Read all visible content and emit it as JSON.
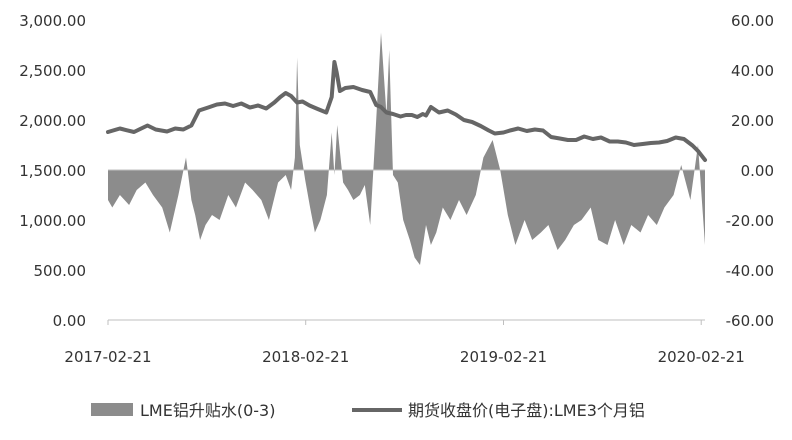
{
  "chart_data": {
    "type": "area",
    "title": "",
    "left_axis": {
      "ylim": [
        0,
        3000
      ],
      "ticks": [
        0,
        500,
        1000,
        1500,
        2000,
        2500,
        3000
      ],
      "tick_labels": [
        "0.00",
        "500.00",
        "1,000.00",
        "1,500.00",
        "2,000.00",
        "2,500.00",
        "3,000.00"
      ]
    },
    "right_axis": {
      "ylim": [
        -60,
        60
      ],
      "ticks": [
        -60,
        -40,
        -20,
        0,
        20,
        40,
        60
      ],
      "tick_labels": [
        "-60.00",
        "-40.00",
        "-20.00",
        "0.00",
        "20.00",
        "40.00",
        "60.00"
      ]
    },
    "x_axis": {
      "range": [
        "2017-02-21",
        "2020-02-28"
      ],
      "tick_labels": [
        "2017-02-21",
        "2018-02-21",
        "2019-02-21",
        "2020-02-21"
      ]
    },
    "grid": false,
    "legend_position": "bottom",
    "colors": {
      "premium_area": "#8c8c8c",
      "price_line": "#666666",
      "axis": "#bfbfbf"
    },
    "series": [
      {
        "name": "期货收盘价(电子盘):LME3个月铝",
        "axis": "left",
        "kind": "line",
        "x": [
          "2017-02-21",
          "2017-03-15",
          "2017-04-10",
          "2017-05-05",
          "2017-05-20",
          "2017-06-10",
          "2017-06-25",
          "2017-07-10",
          "2017-07-25",
          "2017-08-08",
          "2017-08-25",
          "2017-09-10",
          "2017-09-25",
          "2017-10-10",
          "2017-10-25",
          "2017-11-10",
          "2017-11-25",
          "2017-12-10",
          "2017-12-25",
          "2018-01-05",
          "2018-01-15",
          "2018-01-25",
          "2018-02-05",
          "2018-02-15",
          "2018-02-28",
          "2018-03-15",
          "2018-03-31",
          "2018-04-10",
          "2018-04-15",
          "2018-04-19",
          "2018-04-25",
          "2018-05-05",
          "2018-05-20",
          "2018-06-05",
          "2018-06-20",
          "2018-07-01",
          "2018-07-10",
          "2018-07-20",
          "2018-08-01",
          "2018-08-15",
          "2018-08-25",
          "2018-09-05",
          "2018-09-15",
          "2018-09-25",
          "2018-10-01",
          "2018-10-10",
          "2018-10-25",
          "2018-11-10",
          "2018-11-25",
          "2018-12-10",
          "2018-12-25",
          "2019-01-10",
          "2019-01-25",
          "2019-02-05",
          "2019-02-21",
          "2019-03-05",
          "2019-03-20",
          "2019-04-05",
          "2019-04-20",
          "2019-05-05",
          "2019-05-20",
          "2019-06-05",
          "2019-06-20",
          "2019-07-05",
          "2019-07-20",
          "2019-08-05",
          "2019-08-20",
          "2019-09-05",
          "2019-09-20",
          "2019-10-05",
          "2019-10-20",
          "2019-11-05",
          "2019-11-20",
          "2019-12-05",
          "2019-12-20",
          "2020-01-05",
          "2020-01-20",
          "2020-02-05",
          "2020-02-15",
          "2020-02-28"
        ],
        "values": [
          1880,
          1915,
          1880,
          1945,
          1905,
          1885,
          1915,
          1905,
          1945,
          2095,
          2125,
          2155,
          2165,
          2140,
          2165,
          2125,
          2145,
          2115,
          2175,
          2230,
          2270,
          2240,
          2175,
          2185,
          2145,
          2110,
          2075,
          2230,
          2580,
          2480,
          2290,
          2320,
          2330,
          2300,
          2280,
          2150,
          2130,
          2075,
          2060,
          2035,
          2050,
          2050,
          2030,
          2060,
          2045,
          2130,
          2075,
          2095,
          2055,
          2000,
          1980,
          1940,
          1895,
          1865,
          1875,
          1895,
          1915,
          1890,
          1905,
          1895,
          1830,
          1815,
          1800,
          1800,
          1835,
          1810,
          1825,
          1785,
          1785,
          1775,
          1750,
          1760,
          1770,
          1775,
          1790,
          1825,
          1810,
          1745,
          1690,
          1600
        ]
      },
      {
        "name": "LME铝升贴水(0-3)",
        "axis": "right",
        "kind": "area",
        "x": [
          "2017-02-21",
          "2017-03-01",
          "2017-03-15",
          "2017-04-01",
          "2017-04-15",
          "2017-05-01",
          "2017-05-15",
          "2017-06-01",
          "2017-06-15",
          "2017-07-01",
          "2017-07-15",
          "2017-07-25",
          "2017-08-01",
          "2017-08-10",
          "2017-08-20",
          "2017-09-01",
          "2017-09-15",
          "2017-10-01",
          "2017-10-15",
          "2017-11-01",
          "2017-11-15",
          "2017-12-01",
          "2017-12-15",
          "2018-01-01",
          "2018-01-15",
          "2018-01-25",
          "2018-02-01",
          "2018-02-05",
          "2018-02-10",
          "2018-02-20",
          "2018-03-01",
          "2018-03-10",
          "2018-03-20",
          "2018-04-01",
          "2018-04-10",
          "2018-04-15",
          "2018-04-20",
          "2018-05-01",
          "2018-05-10",
          "2018-05-20",
          "2018-06-01",
          "2018-06-10",
          "2018-06-20",
          "2018-07-01",
          "2018-07-10",
          "2018-07-20",
          "2018-07-25",
          "2018-08-01",
          "2018-08-10",
          "2018-08-20",
          "2018-09-01",
          "2018-09-10",
          "2018-09-20",
          "2018-10-01",
          "2018-10-10",
          "2018-10-20",
          "2018-11-01",
          "2018-11-15",
          "2018-12-01",
          "2018-12-15",
          "2019-01-01",
          "2019-01-15",
          "2019-02-01",
          "2019-02-15",
          "2019-03-01",
          "2019-03-15",
          "2019-04-01",
          "2019-04-15",
          "2019-05-01",
          "2019-05-15",
          "2019-06-01",
          "2019-06-15",
          "2019-07-01",
          "2019-07-15",
          "2019-08-01",
          "2019-08-15",
          "2019-09-01",
          "2019-09-15",
          "2019-10-01",
          "2019-10-15",
          "2019-11-01",
          "2019-11-15",
          "2019-12-01",
          "2019-12-15",
          "2020-01-01",
          "2020-01-15",
          "2020-02-01",
          "2020-02-15",
          "2020-02-28"
        ],
        "values": [
          -12,
          -15,
          -10,
          -14,
          -8,
          -5,
          -10,
          -15,
          -25,
          -10,
          5,
          -12,
          -18,
          -28,
          -22,
          -18,
          -20,
          -10,
          -15,
          -5,
          -8,
          -12,
          -20,
          -5,
          -2,
          -8,
          5,
          45,
          10,
          -4,
          -15,
          -25,
          -20,
          -10,
          15,
          -2,
          18,
          -5,
          -8,
          -12,
          -10,
          -6,
          -22,
          20,
          55,
          22,
          48,
          -2,
          -5,
          -20,
          -28,
          -35,
          -38,
          -22,
          -30,
          -25,
          -15,
          -20,
          -12,
          -18,
          -10,
          5,
          12,
          0,
          -18,
          -30,
          -20,
          -28,
          -25,
          -22,
          -32,
          -28,
          -22,
          -20,
          -15,
          -28,
          -30,
          -20,
          -30,
          -22,
          -25,
          -18,
          -22,
          -15,
          -10,
          2,
          -12,
          10,
          -30
        ]
      }
    ]
  }
}
